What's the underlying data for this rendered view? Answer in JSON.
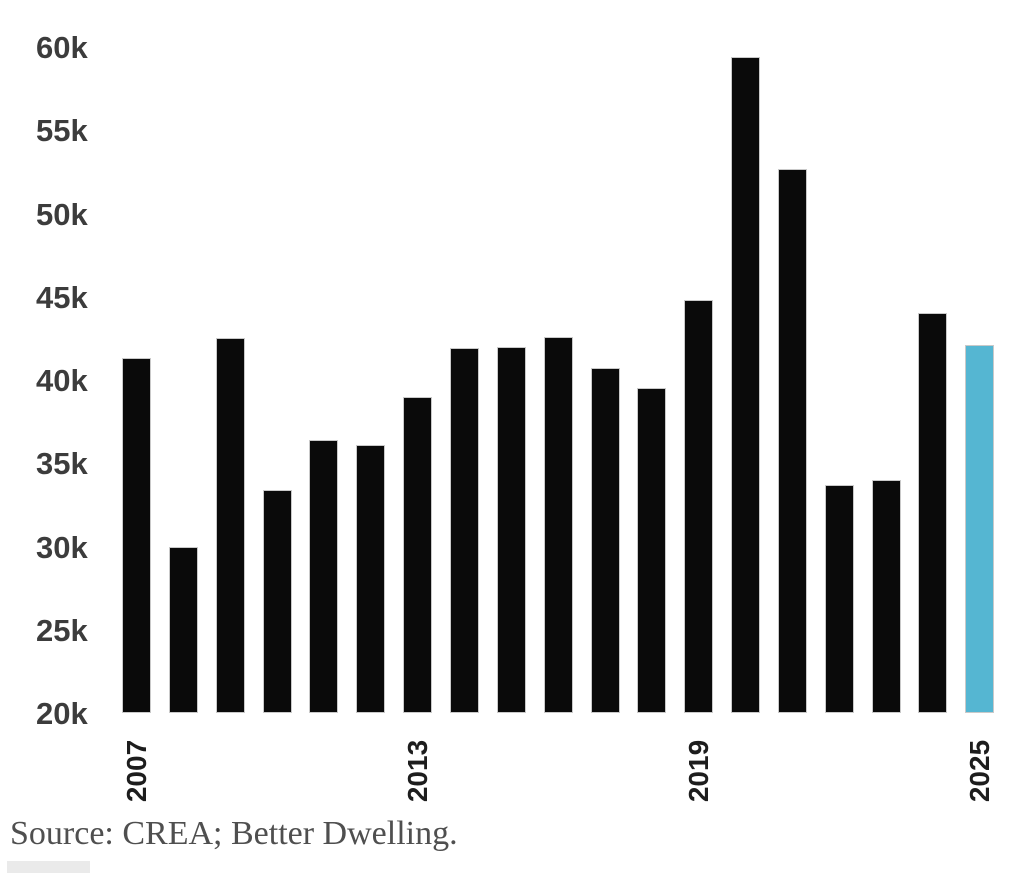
{
  "chart_data": {
    "type": "bar",
    "title": "",
    "xlabel": "",
    "ylabel": "",
    "x": [
      2007,
      2008,
      2009,
      2010,
      2011,
      2012,
      2013,
      2014,
      2015,
      2016,
      2017,
      2018,
      2019,
      2020,
      2021,
      2022,
      2023,
      2024,
      2025
    ],
    "values": [
      41300,
      30000,
      42500,
      33400,
      36400,
      36100,
      39000,
      41900,
      42000,
      42600,
      40700,
      39500,
      44800,
      59400,
      52700,
      33700,
      34000,
      44000,
      42100
    ],
    "ylim": [
      20000,
      60000
    ],
    "yticks": [
      {
        "value": 20000,
        "label": "20k"
      },
      {
        "value": 25000,
        "label": "25k"
      },
      {
        "value": 30000,
        "label": "30k"
      },
      {
        "value": 35000,
        "label": "35k"
      },
      {
        "value": 40000,
        "label": "40k"
      },
      {
        "value": 45000,
        "label": "45k"
      },
      {
        "value": 50000,
        "label": "50k"
      },
      {
        "value": 55000,
        "label": "55k"
      },
      {
        "value": 60000,
        "label": "60k"
      }
    ],
    "xticks": [
      {
        "year": "2007",
        "index": 0
      },
      {
        "year": "2013",
        "index": 6
      },
      {
        "year": "2019",
        "index": 12
      },
      {
        "year": "2025",
        "index": 18
      }
    ],
    "grid": false,
    "legend_position": "none",
    "bar_color": "#0a0a0a",
    "highlight_color": "#55b6d2",
    "highlight_index": 18
  },
  "source": {
    "text": "Source: CREA; Better Dwelling."
  }
}
